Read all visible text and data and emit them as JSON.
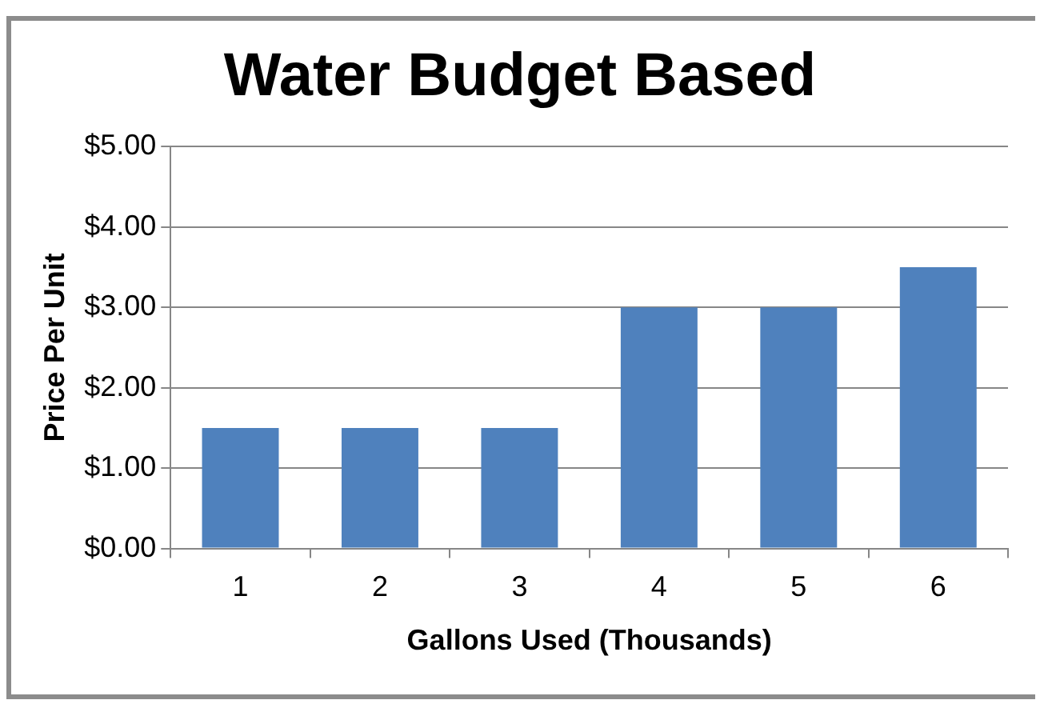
{
  "chart_data": {
    "type": "bar",
    "title": "Water Budget Based",
    "xlabel": "Gallons Used (Thousands)",
    "ylabel": "Price Per Unit",
    "categories": [
      "1",
      "2",
      "3",
      "4",
      "5",
      "6"
    ],
    "values": [
      1.5,
      1.5,
      1.5,
      3,
      3,
      3.5
    ],
    "color": "#4f81bd",
    "ylim": [
      0,
      5
    ],
    "yticks": [
      {
        "value": 0,
        "label": "$0.00"
      },
      {
        "value": 1,
        "label": "$1.00"
      },
      {
        "value": 2,
        "label": "$2.00"
      },
      {
        "value": 3,
        "label": "$3.00"
      },
      {
        "value": 4,
        "label": "$4.00"
      },
      {
        "value": 5,
        "label": "$5.00"
      }
    ],
    "grid": "y"
  }
}
